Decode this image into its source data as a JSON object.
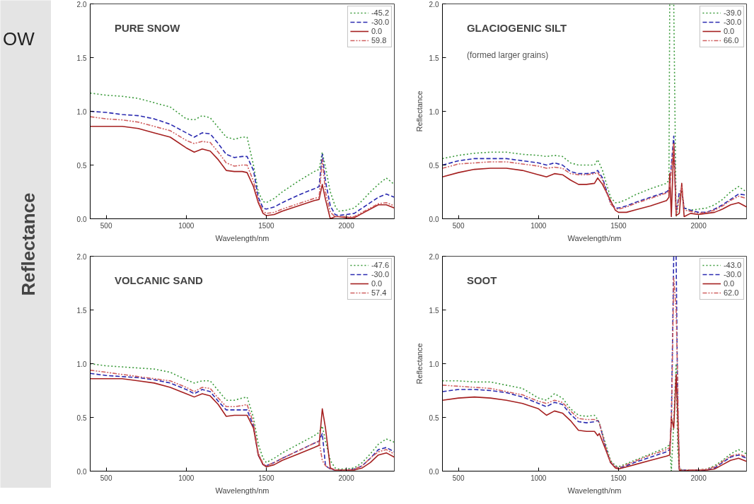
{
  "chart_data": [
    {
      "type": "line",
      "title": "PURE SNOW",
      "xlabel": "Wavelength/nm",
      "annotations": [
        "OW",
        "Reflectance"
      ],
      "xlim": [
        400,
        2300
      ],
      "ylim": [
        0,
        2
      ],
      "xticks": [
        500,
        1000,
        1500,
        2000
      ],
      "yticks": [
        {
          "value": 0,
          "label": "0.0"
        },
        {
          "value": 0.5,
          "label": "0.5"
        },
        {
          "value": 1,
          "label": "1.0"
        },
        {
          "value": 1.5,
          "label": "1.5"
        },
        {
          "value": 2,
          "label": "2.0"
        }
      ],
      "legend": "top right",
      "x": [
        400,
        500,
        600,
        700,
        800,
        900,
        1000,
        1050,
        1100,
        1150,
        1200,
        1250,
        1300,
        1350,
        1380,
        1420,
        1450,
        1480,
        1500,
        1550,
        1600,
        1700,
        1800,
        1830,
        1850,
        1870,
        1900,
        1930,
        1950,
        2000,
        2050,
        2100,
        2150,
        2200,
        2250,
        2300
      ],
      "series": [
        {
          "name": "-45.2",
          "color": "#3a9a3a",
          "line_style": "dotted",
          "values": [
            1.17,
            1.15,
            1.14,
            1.12,
            1.08,
            1.04,
            0.93,
            0.92,
            0.96,
            0.94,
            0.85,
            0.76,
            0.74,
            0.76,
            0.76,
            0.5,
            0.25,
            0.16,
            0.15,
            0.19,
            0.25,
            0.35,
            0.44,
            0.46,
            0.62,
            0.48,
            0.25,
            0.12,
            0.07,
            0.08,
            0.1,
            0.17,
            0.25,
            0.32,
            0.38,
            0.32
          ]
        },
        {
          "name": "-30.0",
          "color": "#2a2ab0",
          "line_style": "dashed",
          "values": [
            1.0,
            0.99,
            0.97,
            0.96,
            0.93,
            0.88,
            0.8,
            0.76,
            0.8,
            0.79,
            0.7,
            0.6,
            0.57,
            0.58,
            0.58,
            0.45,
            0.2,
            0.1,
            0.09,
            0.11,
            0.15,
            0.22,
            0.28,
            0.3,
            0.6,
            0.35,
            0.12,
            0.04,
            0.03,
            0.04,
            0.05,
            0.1,
            0.15,
            0.2,
            0.23,
            0.2
          ]
        },
        {
          "name": "0.0",
          "color": "#a52020",
          "line_style": "solid",
          "values": [
            0.86,
            0.86,
            0.86,
            0.84,
            0.8,
            0.76,
            0.66,
            0.62,
            0.65,
            0.63,
            0.55,
            0.45,
            0.44,
            0.44,
            0.43,
            0.3,
            0.15,
            0.05,
            0.03,
            0.04,
            0.07,
            0.12,
            0.17,
            0.18,
            0.32,
            0.18,
            0.0,
            0.02,
            0.02,
            0.01,
            0.01,
            0.05,
            0.09,
            0.13,
            0.13,
            0.1
          ]
        },
        {
          "name": "59.8",
          "color": "#d06060",
          "line_style": "dashdot",
          "values": [
            0.95,
            0.93,
            0.92,
            0.9,
            0.86,
            0.82,
            0.73,
            0.7,
            0.72,
            0.71,
            0.62,
            0.52,
            0.49,
            0.5,
            0.5,
            0.35,
            0.17,
            0.07,
            0.05,
            0.06,
            0.09,
            0.14,
            0.19,
            0.2,
            0.55,
            0.25,
            0.06,
            0.02,
            0.02,
            0.02,
            0.02,
            0.06,
            0.1,
            0.14,
            0.15,
            0.12
          ]
        }
      ]
    },
    {
      "type": "line",
      "title": "GLACIOGENIC SILT",
      "subtitle": "(formed larger grains)",
      "xlabel": "Wavelength/nm",
      "ylabel": "Reflectance",
      "xlim": [
        400,
        2300
      ],
      "ylim": [
        0,
        2
      ],
      "xticks": [
        500,
        1000,
        1500,
        2000
      ],
      "yticks": [
        {
          "value": 0,
          "label": "0.0"
        },
        {
          "value": 0.5,
          "label": "0.5"
        },
        {
          "value": 1,
          "label": "1.0"
        },
        {
          "value": 1.5,
          "label": "1.5"
        },
        {
          "value": 2,
          "label": "2.0"
        }
      ],
      "legend": "top right",
      "x": [
        400,
        500,
        600,
        700,
        800,
        900,
        1000,
        1050,
        1100,
        1150,
        1200,
        1250,
        1300,
        1350,
        1370,
        1400,
        1450,
        1480,
        1500,
        1550,
        1600,
        1700,
        1800,
        1815,
        1820,
        1830,
        1845,
        1860,
        1880,
        1895,
        1910,
        1950,
        2000,
        2050,
        2100,
        2150,
        2200,
        2250,
        2300
      ],
      "series": [
        {
          "name": "-39.0",
          "color": "#3a9a3a",
          "line_style": "dotted",
          "values": [
            0.56,
            0.59,
            0.61,
            0.62,
            0.62,
            0.6,
            0.59,
            0.58,
            0.59,
            0.58,
            0.52,
            0.5,
            0.5,
            0.5,
            0.55,
            0.45,
            0.2,
            0.15,
            0.15,
            0.18,
            0.22,
            0.28,
            0.33,
            0.36,
            2.0,
            2.0,
            2.0,
            0.02,
            0.2,
            0.25,
            0.1,
            0.08,
            0.09,
            0.1,
            0.13,
            0.18,
            0.25,
            0.3,
            0.25
          ]
        },
        {
          "name": "-30.0",
          "color": "#2a2ab0",
          "line_style": "dashed",
          "values": [
            0.5,
            0.54,
            0.56,
            0.56,
            0.56,
            0.54,
            0.52,
            0.5,
            0.52,
            0.5,
            0.44,
            0.42,
            0.42,
            0.43,
            0.45,
            0.38,
            0.15,
            0.1,
            0.1,
            0.12,
            0.15,
            0.2,
            0.25,
            0.27,
            0.3,
            0.5,
            0.77,
            0.05,
            0.25,
            0.27,
            0.1,
            0.08,
            0.06,
            0.06,
            0.09,
            0.13,
            0.18,
            0.23,
            0.22
          ]
        },
        {
          "name": "0.0",
          "color": "#a52020",
          "line_style": "solid",
          "values": [
            0.39,
            0.43,
            0.46,
            0.47,
            0.47,
            0.45,
            0.41,
            0.39,
            0.42,
            0.41,
            0.36,
            0.32,
            0.32,
            0.33,
            0.38,
            0.32,
            0.17,
            0.08,
            0.06,
            0.06,
            0.08,
            0.12,
            0.17,
            0.2,
            0.42,
            0.02,
            0.7,
            0.03,
            0.05,
            0.33,
            0.02,
            0.05,
            0.04,
            0.05,
            0.06,
            0.09,
            0.13,
            0.15,
            0.11
          ]
        },
        {
          "name": "66.0",
          "color": "#d06060",
          "line_style": "dashdot",
          "values": [
            0.47,
            0.51,
            0.52,
            0.53,
            0.53,
            0.51,
            0.49,
            0.47,
            0.48,
            0.47,
            0.42,
            0.41,
            0.41,
            0.42,
            0.43,
            0.36,
            0.14,
            0.09,
            0.09,
            0.11,
            0.14,
            0.19,
            0.24,
            0.26,
            0.3,
            0.45,
            0.7,
            0.05,
            0.2,
            0.3,
            0.08,
            0.07,
            0.05,
            0.06,
            0.08,
            0.12,
            0.17,
            0.21,
            0.19
          ]
        }
      ]
    },
    {
      "type": "line",
      "title": "VOLCANIC SAND",
      "xlabel": "Wavelength/nm",
      "xlim": [
        400,
        2300
      ],
      "ylim": [
        0,
        2
      ],
      "xticks": [
        500,
        1000,
        1500,
        2000
      ],
      "yticks": [
        {
          "value": 0,
          "label": "0.0"
        },
        {
          "value": 0.5,
          "label": "0.5"
        },
        {
          "value": 1,
          "label": "1.0"
        },
        {
          "value": 1.5,
          "label": "1.5"
        },
        {
          "value": 2,
          "label": "2.0"
        }
      ],
      "legend": "top right",
      "x": [
        400,
        500,
        600,
        700,
        800,
        900,
        1000,
        1050,
        1100,
        1150,
        1200,
        1250,
        1300,
        1350,
        1380,
        1420,
        1450,
        1480,
        1500,
        1550,
        1600,
        1700,
        1800,
        1830,
        1850,
        1870,
        1900,
        1930,
        1950,
        2000,
        2050,
        2100,
        2150,
        2200,
        2250,
        2300
      ],
      "series": [
        {
          "name": "-47.6",
          "color": "#3a9a3a",
          "line_style": "dotted",
          "values": [
            1.0,
            0.98,
            0.97,
            0.96,
            0.95,
            0.92,
            0.85,
            0.82,
            0.84,
            0.84,
            0.75,
            0.66,
            0.66,
            0.68,
            0.69,
            0.5,
            0.25,
            0.12,
            0.08,
            0.12,
            0.17,
            0.25,
            0.33,
            0.36,
            0.42,
            0.28,
            0.1,
            0.03,
            0.02,
            0.02,
            0.03,
            0.08,
            0.16,
            0.25,
            0.3,
            0.27
          ]
        },
        {
          "name": "-30.0",
          "color": "#2a2ab0",
          "line_style": "dashed",
          "values": [
            0.91,
            0.89,
            0.88,
            0.87,
            0.85,
            0.82,
            0.76,
            0.72,
            0.76,
            0.74,
            0.65,
            0.57,
            0.57,
            0.57,
            0.57,
            0.42,
            0.15,
            0.06,
            0.05,
            0.08,
            0.12,
            0.19,
            0.26,
            0.28,
            0.35,
            0.05,
            0.02,
            0.01,
            0.01,
            0.01,
            0.02,
            0.05,
            0.12,
            0.2,
            0.22,
            0.18
          ]
        },
        {
          "name": "0.0",
          "color": "#a52020",
          "line_style": "solid",
          "values": [
            0.86,
            0.86,
            0.86,
            0.84,
            0.82,
            0.78,
            0.72,
            0.69,
            0.72,
            0.7,
            0.62,
            0.51,
            0.52,
            0.52,
            0.52,
            0.4,
            0.15,
            0.06,
            0.04,
            0.06,
            0.1,
            0.16,
            0.22,
            0.24,
            0.58,
            0.4,
            0.03,
            0.01,
            0.01,
            0.01,
            0.01,
            0.03,
            0.08,
            0.15,
            0.17,
            0.13
          ]
        },
        {
          "name": "57.4",
          "color": "#d06060",
          "line_style": "dashdot",
          "values": [
            0.94,
            0.92,
            0.9,
            0.88,
            0.86,
            0.84,
            0.78,
            0.74,
            0.78,
            0.77,
            0.68,
            0.6,
            0.6,
            0.61,
            0.62,
            0.45,
            0.17,
            0.07,
            0.05,
            0.08,
            0.12,
            0.19,
            0.26,
            0.28,
            0.1,
            0.05,
            0.02,
            0.01,
            0.01,
            0.01,
            0.02,
            0.05,
            0.12,
            0.18,
            0.2,
            0.16
          ]
        }
      ]
    },
    {
      "type": "line",
      "title": "SOOT",
      "xlabel": "Wavelength/nm",
      "ylabel": "Reflectance",
      "xlim": [
        400,
        2300
      ],
      "ylim": [
        0,
        2
      ],
      "xticks": [
        500,
        1000,
        1500,
        2000
      ],
      "yticks": [
        {
          "value": 0,
          "label": "0.0"
        },
        {
          "value": 0.5,
          "label": "0.5"
        },
        {
          "value": 1,
          "label": "1.0"
        },
        {
          "value": 1.5,
          "label": "1.5"
        },
        {
          "value": 2,
          "label": "2.0"
        }
      ],
      "legend": "top right",
      "x": [
        400,
        500,
        600,
        700,
        800,
        900,
        1000,
        1050,
        1100,
        1150,
        1200,
        1250,
        1300,
        1350,
        1370,
        1380,
        1420,
        1450,
        1480,
        1500,
        1550,
        1600,
        1700,
        1800,
        1820,
        1830,
        1845,
        1860,
        1870,
        1880,
        1900,
        1950,
        2000,
        2050,
        2100,
        2150,
        2200,
        2250,
        2300
      ],
      "series": [
        {
          "name": "-43.0",
          "color": "#3a9a3a",
          "line_style": "dotted",
          "values": [
            0.84,
            0.84,
            0.83,
            0.83,
            0.8,
            0.77,
            0.68,
            0.66,
            0.72,
            0.68,
            0.58,
            0.52,
            0.51,
            0.52,
            0.48,
            0.45,
            0.25,
            0.1,
            0.05,
            0.04,
            0.07,
            0.1,
            0.16,
            0.22,
            0.25,
            0.0,
            0.45,
            1.0,
            0.2,
            0.02,
            0.01,
            0.01,
            0.01,
            0.02,
            0.05,
            0.1,
            0.16,
            0.2,
            0.16
          ]
        },
        {
          "name": "-30.0",
          "color": "#2a2ab0",
          "line_style": "dashed",
          "values": [
            0.74,
            0.76,
            0.76,
            0.75,
            0.73,
            0.69,
            0.63,
            0.6,
            0.64,
            0.62,
            0.53,
            0.46,
            0.45,
            0.46,
            0.47,
            0.45,
            0.22,
            0.08,
            0.04,
            0.03,
            0.05,
            0.08,
            0.13,
            0.18,
            0.2,
            0.45,
            2.0,
            2.0,
            0.6,
            0.02,
            0.01,
            0.01,
            0.01,
            0.01,
            0.03,
            0.08,
            0.13,
            0.15,
            0.12
          ]
        },
        {
          "name": "0.0",
          "color": "#a52020",
          "line_style": "solid",
          "values": [
            0.66,
            0.68,
            0.69,
            0.68,
            0.66,
            0.63,
            0.58,
            0.52,
            0.56,
            0.54,
            0.47,
            0.38,
            0.37,
            0.37,
            0.33,
            0.35,
            0.2,
            0.08,
            0.03,
            0.02,
            0.04,
            0.06,
            0.1,
            0.14,
            0.15,
            0.5,
            0.4,
            0.9,
            0.5,
            0.01,
            0.0,
            0.01,
            0.01,
            0.01,
            0.02,
            0.06,
            0.1,
            0.12,
            0.09
          ]
        },
        {
          "name": "62.0",
          "color": "#d06060",
          "line_style": "dashdot",
          "values": [
            0.8,
            0.79,
            0.78,
            0.77,
            0.74,
            0.71,
            0.65,
            0.63,
            0.66,
            0.64,
            0.56,
            0.49,
            0.48,
            0.48,
            0.47,
            0.45,
            0.22,
            0.09,
            0.04,
            0.03,
            0.06,
            0.09,
            0.15,
            0.2,
            0.22,
            0.4,
            1.8,
            1.5,
            0.8,
            0.02,
            0.01,
            0.01,
            0.01,
            0.02,
            0.04,
            0.09,
            0.14,
            0.16,
            0.13
          ]
        }
      ]
    }
  ]
}
